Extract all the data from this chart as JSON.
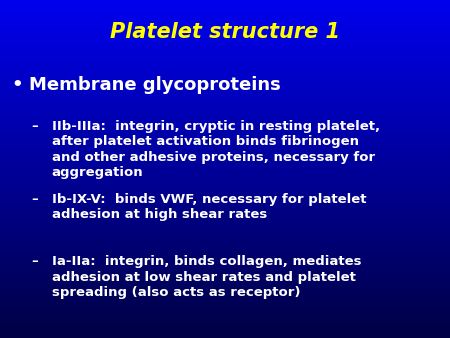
{
  "title": "Platelet structure 1",
  "title_color": "#FFFF00",
  "title_fontsize": 15,
  "background_top": "#0000EE",
  "background_bottom": "#000044",
  "bullet_text": "Membrane glycoproteins",
  "bullet_color": "#FFFFFF",
  "bullet_fontsize": 13,
  "sub_items": [
    "IIb-IIIa:  integrin, cryptic in resting platelet,\nafter platelet activation binds fibrinogen\nand other adhesive proteins, necessary for\naggregation",
    "Ib-IX-V:  binds VWF, necessary for platelet\nadhesion at high shear rates",
    "Ia-IIa:  integrin, binds collagen, mediates\nadhesion at low shear rates and platelet\nspreading (also acts as receptor)"
  ],
  "sub_color": "#FFFFFF",
  "sub_fontsize": 9.5,
  "dash": "–"
}
